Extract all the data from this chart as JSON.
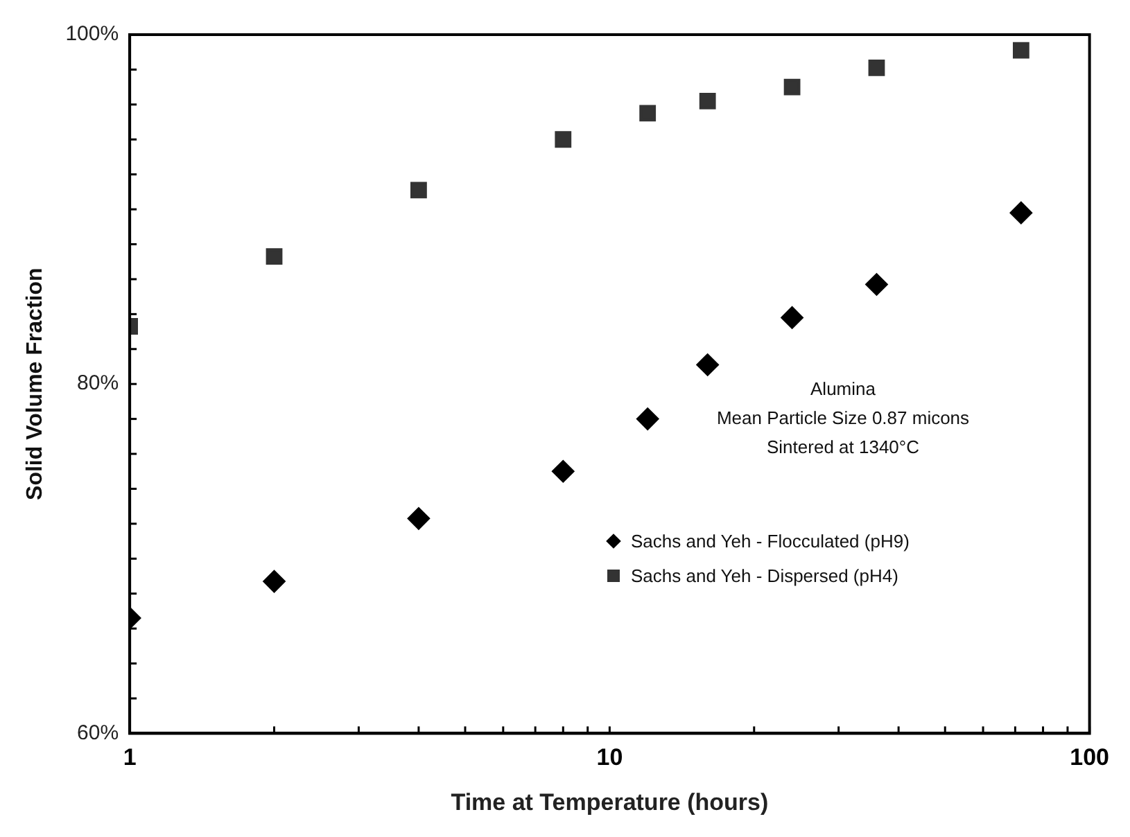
{
  "chart_data": {
    "type": "scatter",
    "xlabel": "Time at Temperature (hours)",
    "ylabel": "Solid Volume Fraction",
    "annotations": [
      "Alumina",
      "Mean Particle Size 0.87 micons",
      "Sintered at 1340°C"
    ],
    "log": "x",
    "xlim": [
      1,
      100
    ],
    "ylim": [
      60,
      100
    ],
    "grid": false,
    "legend": "bottom right",
    "xticks": [
      1,
      {
        "value": 2,
        "label": null
      },
      {
        "value": 3,
        "label": null
      },
      {
        "value": 4,
        "label": null
      },
      {
        "value": 5,
        "label": null
      },
      {
        "value": 6,
        "label": null
      },
      {
        "value": 7,
        "label": null
      },
      {
        "value": 8,
        "label": null
      },
      {
        "value": 9,
        "label": null
      },
      10,
      {
        "value": 20,
        "label": null
      },
      {
        "value": 30,
        "label": null
      },
      {
        "value": 40,
        "label": null
      },
      {
        "value": 50,
        "label": null
      },
      {
        "value": 60,
        "label": null
      },
      {
        "value": 70,
        "label": null
      },
      {
        "value": 80,
        "label": null
      },
      {
        "value": 90,
        "label": null
      },
      100
    ],
    "yticks": [
      {
        "value": 60,
        "label": "60%"
      },
      {
        "value": 62,
        "label": null
      },
      {
        "value": 64,
        "label": null
      },
      {
        "value": 66,
        "label": null
      },
      {
        "value": 68,
        "label": null
      },
      {
        "value": 70,
        "label": null
      },
      {
        "value": 72,
        "label": null
      },
      {
        "value": 74,
        "label": null
      },
      {
        "value": 76,
        "label": null
      },
      {
        "value": 78,
        "label": null
      },
      {
        "value": 80,
        "label": "80%"
      },
      {
        "value": 82,
        "label": null
      },
      {
        "value": 84,
        "label": null
      },
      {
        "value": 86,
        "label": null
      },
      {
        "value": 88,
        "label": null
      },
      {
        "value": 90,
        "label": null
      },
      {
        "value": 92,
        "label": null
      },
      {
        "value": 94,
        "label": null
      },
      {
        "value": 96,
        "label": null
      },
      {
        "value": 98,
        "label": null
      },
      {
        "value": 100,
        "label": "100%"
      }
    ],
    "series": [
      {
        "name": "Sachs and Yeh - Flocculated (pH9)",
        "color": "#000000",
        "marker": "diamond",
        "x": [
          1,
          2,
          4,
          8,
          12,
          16,
          24,
          36,
          72
        ],
        "values": [
          66.6,
          68.7,
          72.3,
          75.0,
          78.0,
          81.1,
          83.8,
          85.7,
          89.8
        ]
      },
      {
        "name": "Sachs and Yeh - Dispersed (pH4)",
        "color": "#333333",
        "marker": "square",
        "x": [
          1,
          2,
          4,
          8,
          12,
          16,
          24,
          36,
          72
        ],
        "values": [
          83.3,
          87.3,
          91.1,
          94.0,
          95.5,
          96.2,
          97.0,
          98.1,
          99.1
        ]
      }
    ]
  }
}
